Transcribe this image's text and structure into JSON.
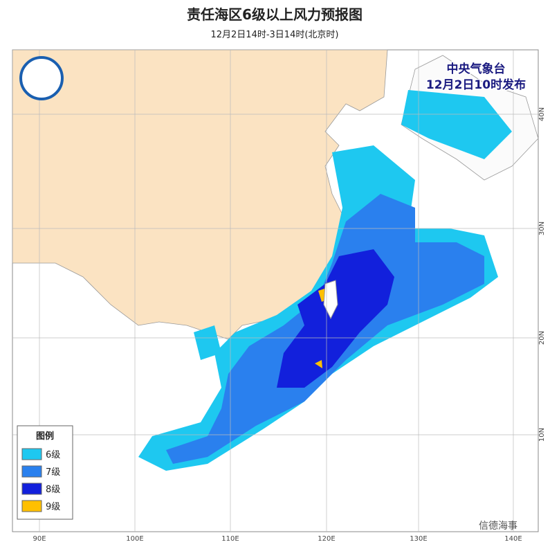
{
  "header": {
    "title": "责任海区6级以上风力预报图",
    "subtitle": "12月2日14时-3日14时(北京时)"
  },
  "issuer": {
    "name": "中央气象台",
    "time": "12月2日10时发布"
  },
  "legend": {
    "title": "图例",
    "items": [
      "6级",
      "7级",
      "8级",
      "9级"
    ]
  },
  "axes": {
    "lon_labels": [
      "90E",
      "100E",
      "110E",
      "120E",
      "130E",
      "140E"
    ],
    "lat_labels": [
      "40N",
      "30N",
      "20N",
      "10N"
    ]
  },
  "watermark": "信德海事"
}
